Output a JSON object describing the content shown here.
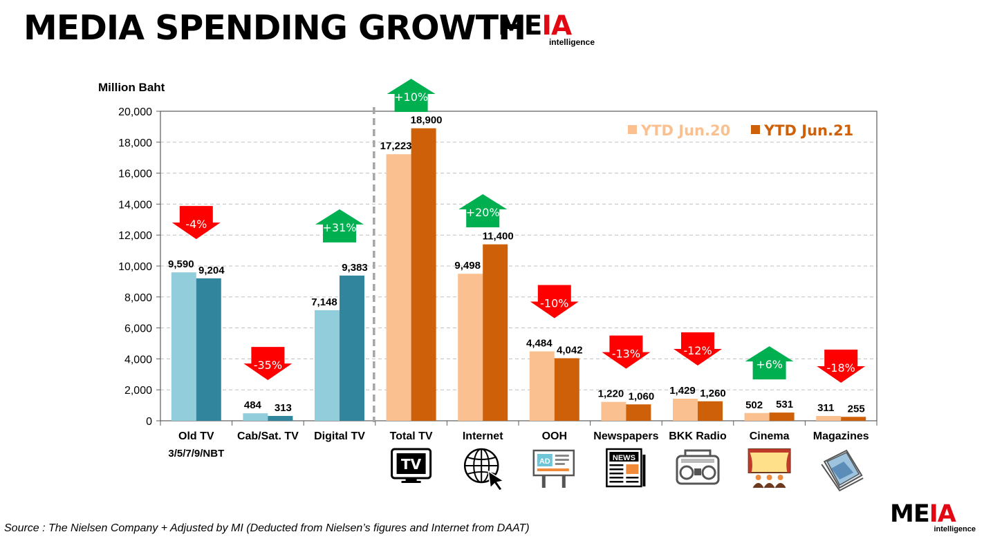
{
  "title": "MEDIA SPENDING GROWTH",
  "logo": {
    "word_black": "ME",
    "word_red": "IA",
    "sub": "intelligence"
  },
  "source": "Source :  The Nielsen  Company + Adjusted by MI (Deducted  from Nielsen’s figures and Internet from DAAT)",
  "colors": {
    "jun20_tv": "#92cddc",
    "jun21_tv": "#31859c",
    "jun20": "#fac090",
    "jun21": "#cd6008",
    "up": "#00b050",
    "down": "#ff0000",
    "logo_red": "#e30613"
  },
  "chart_data": {
    "type": "bar",
    "ylabel": "Million Baht",
    "ylim": [
      0,
      20000
    ],
    "yticks": [
      "0",
      "2,000",
      "4,000",
      "6,000",
      "8,000",
      "10,000",
      "12,000",
      "14,000",
      "16,000",
      "18,000",
      "20,000"
    ],
    "grid": true,
    "legend_position": "top-right",
    "categories": [
      "Old TV",
      "Cab/Sat. TV",
      "Digital TV",
      "Total TV",
      "Internet",
      "OOH",
      "Newspapers",
      "BKK Radio",
      "Cinema",
      "Magazines"
    ],
    "category_sublabels": [
      "3/5/7/9/NBT",
      "",
      "",
      "",
      "",
      "",
      "",
      "",
      "",
      ""
    ],
    "series": [
      {
        "name": "YTD Jun.20",
        "values": [
          9590,
          484,
          7148,
          17223,
          9498,
          4484,
          1220,
          1429,
          502,
          311
        ],
        "labels": [
          "9,590",
          "484",
          "7,148",
          "17,223",
          "9,498",
          "4,484",
          "1,220",
          "1,429",
          "502",
          "311"
        ]
      },
      {
        "name": "YTD Jun.21",
        "values": [
          9204,
          313,
          9383,
          18900,
          11400,
          4042,
          1060,
          1260,
          531,
          255
        ],
        "labels": [
          "9,204",
          "313",
          "9,383",
          "18,900",
          "11,400",
          "4,042",
          "1,060",
          "1,260",
          "531",
          "255"
        ]
      }
    ],
    "growth": [
      {
        "label": "-4%",
        "direction": "down"
      },
      {
        "label": "-35%",
        "direction": "down"
      },
      {
        "label": "+31%",
        "direction": "up"
      },
      {
        "label": "+10%",
        "direction": "up"
      },
      {
        "label": "+20%",
        "direction": "up"
      },
      {
        "label": "-10%",
        "direction": "down"
      },
      {
        "label": "-13%",
        "direction": "down"
      },
      {
        "label": "-12%",
        "direction": "down"
      },
      {
        "label": "+6%",
        "direction": "up"
      },
      {
        "label": "-18%",
        "direction": "down"
      }
    ],
    "media_icons": [
      "",
      "",
      "",
      "tv-icon",
      "internet-icon",
      "ooh-billboard-icon",
      "newspaper-icon",
      "radio-icon",
      "cinema-icon",
      "magazine-icon"
    ],
    "icon_text": {
      "tv": "TV",
      "ooh": "AD",
      "news": "NEWS"
    }
  }
}
